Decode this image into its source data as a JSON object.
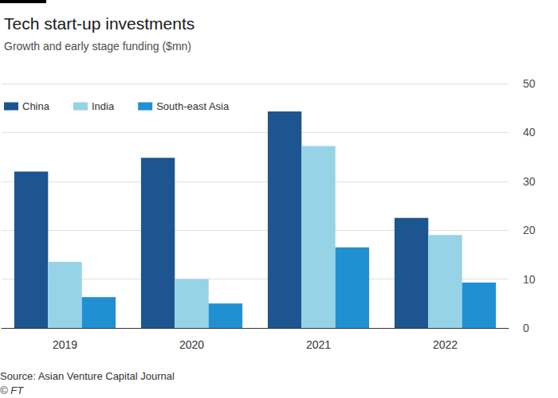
{
  "chart_data": {
    "type": "bar",
    "title": "Tech start-up investments",
    "subtitle": "Growth and early stage funding ($mn)",
    "source": "Source: Asian Venture Capital Journal",
    "credit": "© FT",
    "categories": [
      "2019",
      "2020",
      "2021",
      "2022"
    ],
    "series": [
      {
        "name": "China",
        "color": "#1d5591",
        "values": [
          32,
          34.8,
          44.3,
          22.5
        ]
      },
      {
        "name": "India",
        "color": "#96d3e6",
        "values": [
          13.5,
          10,
          37.2,
          19
        ]
      },
      {
        "name": "South-east Asia",
        "color": "#2190d2",
        "values": [
          6.3,
          5,
          16.5,
          9.3
        ]
      }
    ],
    "ylim": [
      0,
      50
    ],
    "yticks": [
      0,
      10,
      20,
      30,
      40,
      50
    ],
    "grid": true,
    "legend": "top-left"
  }
}
